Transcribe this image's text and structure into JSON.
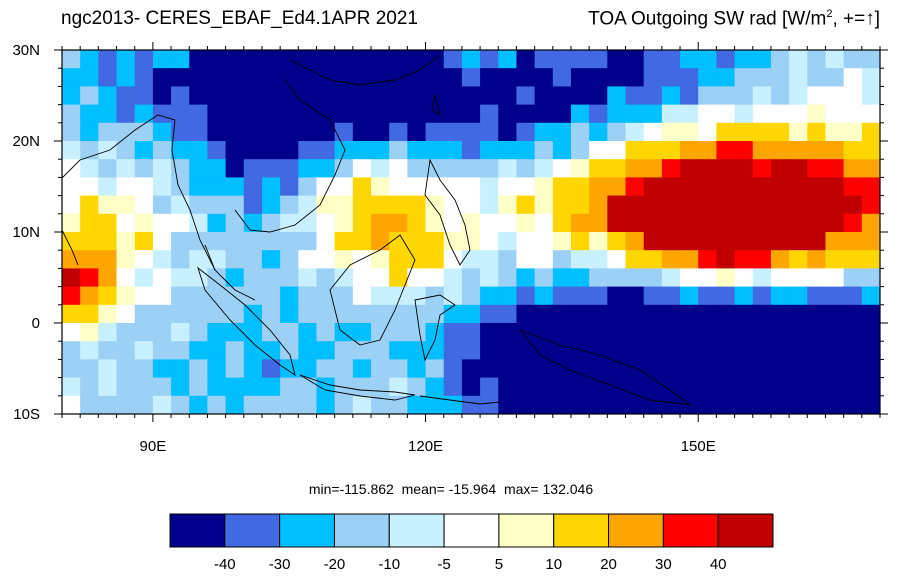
{
  "title": {
    "left": "ngc2013- CERES_EBAF_Ed4.1APR 2021",
    "right_prefix": "TOA Outgoing SW rad [W/m",
    "right_sup": "2",
    "right_suffix": ", +=",
    "right_arrow": "↑",
    "right_close": "]"
  },
  "axes": {
    "lat_labels": [
      "30N",
      "20N",
      "10N",
      "0",
      "10S"
    ],
    "lat_values": [
      30,
      20,
      10,
      0,
      -10
    ],
    "lon_labels": [
      "90E",
      "120E",
      "150E"
    ],
    "lon_values": [
      90,
      120,
      150
    ],
    "lon_range": [
      80,
      170
    ],
    "lat_range": [
      -10,
      30
    ]
  },
  "stats": {
    "min_label": "min=-115.862",
    "mean_label": "mean= -15.964",
    "max_label": "max= 132.046"
  },
  "colorbar": {
    "colors": [
      "#00008b",
      "#4169e1",
      "#00bfff",
      "#9dd0f5",
      "#c8f0ff",
      "#ffffff",
      "#ffffc8",
      "#ffd700",
      "#ffa500",
      "#ff0000",
      "#c00000"
    ],
    "labels": [
      "-40",
      "-30",
      "-20",
      "-10",
      "-5",
      "5",
      "10",
      "20",
      "30",
      "40"
    ]
  },
  "colors": {
    "land_outline": "#000000"
  }
}
